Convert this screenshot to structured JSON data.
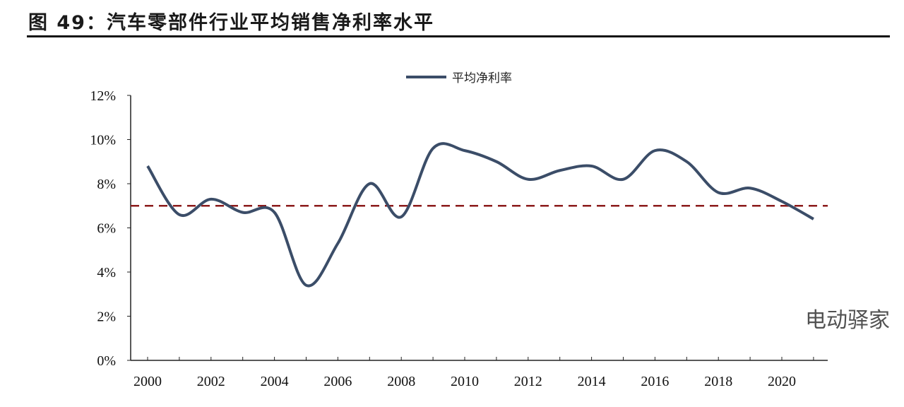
{
  "title": "图 49：汽车零部件行业平均销售净利率水平",
  "watermark": "电动驿家",
  "chart_data": {
    "type": "line",
    "title": "图 49：汽车零部件行业平均销售净利率水平",
    "x": [
      2000,
      2001,
      2002,
      2003,
      2004,
      2005,
      2006,
      2007,
      2008,
      2009,
      2010,
      2011,
      2012,
      2013,
      2014,
      2015,
      2016,
      2017,
      2018,
      2019,
      2020,
      2021
    ],
    "series": [
      {
        "name": "平均净利率",
        "color": "#3b4d68",
        "values": [
          8.8,
          6.6,
          7.3,
          6.7,
          6.7,
          3.4,
          5.3,
          8.0,
          6.5,
          9.6,
          9.5,
          9.0,
          8.2,
          8.6,
          8.8,
          8.2,
          9.5,
          9.0,
          7.6,
          7.8,
          7.2,
          6.4
        ]
      }
    ],
    "reference_line": {
      "value": 7,
      "color": "#8b1a1a",
      "style": "dashed"
    },
    "xticks": [
      "2000",
      "2002",
      "2004",
      "2006",
      "2008",
      "2010",
      "2012",
      "2014",
      "2016",
      "2018",
      "2020"
    ],
    "yticks": [
      "0%",
      "2%",
      "4%",
      "6%",
      "8%",
      "10%",
      "12%"
    ],
    "ylim": [
      0,
      12
    ],
    "xlim": [
      2000,
      2021.5
    ],
    "legend": "top-center",
    "grid": false
  }
}
